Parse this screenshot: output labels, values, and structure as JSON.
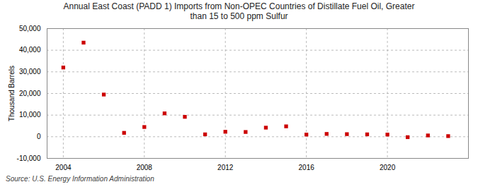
{
  "chart_data": {
    "type": "scatter",
    "title": "Annual East Coast (PADD 1) Imports from Non-OPEC Countries of Distillate Fuel Oil, Greater\nthan 15 to 500 ppm Sulfur",
    "ylabel": "Thousand Barrels",
    "annotations": [
      "Source: U.S. Energy Information Administration"
    ],
    "x": [
      2004,
      2005,
      2006,
      2007,
      2008,
      2009,
      2010,
      2011,
      2012,
      2013,
      2014,
      2015,
      2016,
      2017,
      2018,
      2019,
      2020,
      2021,
      2022,
      2023
    ],
    "values": [
      32000,
      43500,
      19500,
      1800,
      4500,
      10800,
      9200,
      1100,
      2300,
      2200,
      4200,
      4800,
      1000,
      1300,
      1200,
      1100,
      1000,
      -200,
      600,
      300
    ],
    "color": "#cc0000",
    "marker": "square",
    "xlim": [
      2003.2,
      2024.0
    ],
    "xticks": [
      2004,
      2008,
      2012,
      2016,
      2020
    ],
    "ylim": [
      -10000,
      50000
    ],
    "yticks": [
      {
        "value": -10000,
        "label": "-10,000"
      },
      0,
      {
        "value": 10000,
        "label": "10,000"
      },
      {
        "value": 20000,
        "label": "20,000"
      },
      {
        "value": 30000,
        "label": "30,000"
      },
      {
        "value": 40000,
        "label": "40,000"
      },
      {
        "value": 50000,
        "label": "50,000"
      }
    ],
    "grid": true
  }
}
